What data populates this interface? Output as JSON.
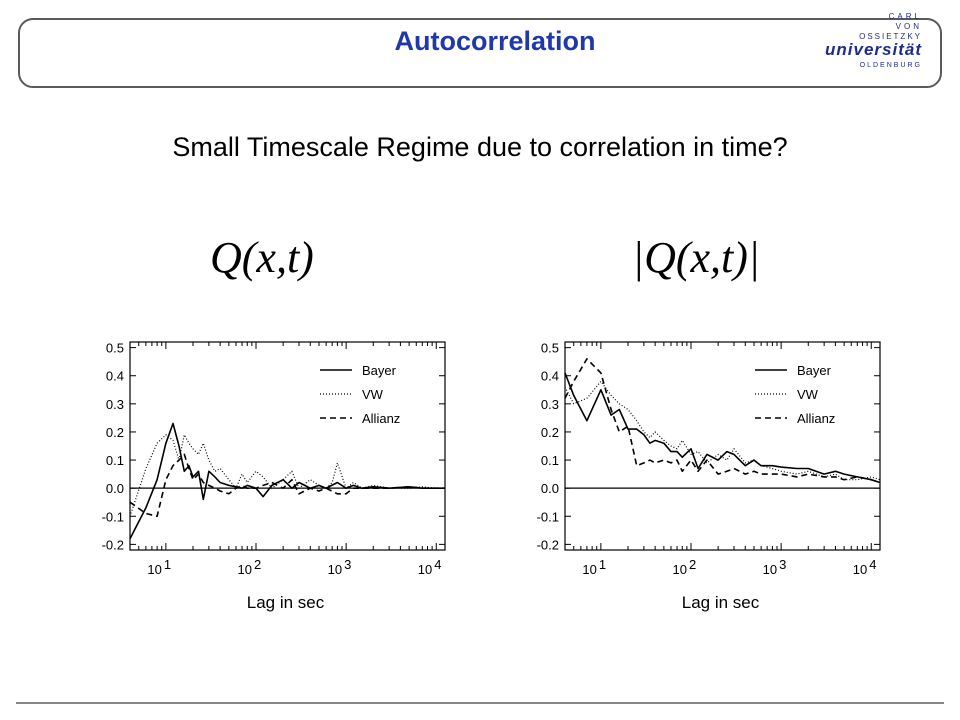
{
  "header": {
    "title": "Autocorrelation",
    "logo": {
      "line1": "CARL",
      "line2": "VON",
      "line3": "OSSIETZKY",
      "line4": "universität",
      "line5": "OLDENBURG"
    }
  },
  "subtitle": "Small Timescale Regime due to correlation in time?",
  "formulas": {
    "left": "Q(x,t)",
    "right": "|Q(x,t)|"
  },
  "chart_data": [
    {
      "type": "line",
      "xlabel": "Lag in sec",
      "xscale": "log",
      "xlim": [
        4,
        12500
      ],
      "ylim": [
        -0.22,
        0.52
      ],
      "yticks": [
        -0.2,
        -0.1,
        0.0,
        0.1,
        0.2,
        0.3,
        0.4,
        0.5
      ],
      "ytick_labels": [
        "-0.2",
        "-0.1",
        "0.0",
        "0.1",
        "0.2",
        "0.3",
        "0.4",
        "0.5"
      ],
      "xticks": [
        10,
        100,
        1000,
        10000
      ],
      "xtick_labels": [
        {
          "base": "10",
          "exp": "1"
        },
        {
          "base": "10",
          "exp": "2"
        },
        {
          "base": "10",
          "exp": "3"
        },
        {
          "base": "10",
          "exp": "4"
        }
      ],
      "grid": false,
      "legend": "top-right",
      "zero_line": true,
      "series": [
        {
          "name": "Bayer",
          "dash": "solid",
          "x": [
            4,
            6,
            8,
            10,
            12,
            14,
            16,
            18,
            20,
            23,
            26,
            30,
            35,
            40,
            50,
            60,
            70,
            80,
            100,
            120,
            150,
            200,
            250,
            300,
            400,
            500,
            600,
            800,
            1000,
            1200,
            1500,
            2000,
            3000,
            5000,
            7000,
            10000,
            12500
          ],
          "y": [
            -0.18,
            -0.07,
            0.03,
            0.16,
            0.23,
            0.15,
            0.06,
            0.08,
            0.04,
            0.06,
            -0.04,
            0.06,
            0.04,
            0.02,
            0.01,
            0.005,
            0.0,
            0.01,
            0.0,
            -0.03,
            0.01,
            0.03,
            0.0,
            0.02,
            0.0,
            0.01,
            0.0,
            0.02,
            0.0,
            0.01,
            0.0,
            0.005,
            0.0,
            0.005,
            0.0,
            0.0,
            0.0
          ]
        },
        {
          "name": "VW",
          "dash": "dotted",
          "x": [
            4,
            6,
            8,
            10,
            12,
            14,
            16,
            18,
            20,
            23,
            26,
            30,
            35,
            40,
            50,
            60,
            70,
            80,
            100,
            120,
            150,
            200,
            250,
            300,
            400,
            500,
            600,
            700,
            800,
            1000,
            1200,
            1500,
            2000,
            3000,
            5000,
            7000,
            10000,
            12500
          ],
          "y": [
            -0.1,
            0.07,
            0.16,
            0.19,
            0.17,
            0.1,
            0.19,
            0.16,
            0.14,
            0.12,
            0.16,
            0.1,
            0.06,
            0.07,
            0.03,
            0.0,
            0.05,
            0.02,
            0.06,
            0.04,
            0.0,
            0.03,
            0.06,
            0.0,
            0.03,
            0.01,
            0.0,
            0.02,
            0.09,
            0.0,
            0.02,
            0.0,
            0.01,
            0.0,
            0.0,
            0.005,
            0.0,
            0.0
          ]
        },
        {
          "name": "Allianz",
          "dash": "dashed",
          "x": [
            4,
            6,
            8,
            10,
            12,
            14,
            16,
            18,
            20,
            23,
            26,
            30,
            35,
            40,
            50,
            60,
            70,
            80,
            100,
            120,
            150,
            200,
            250,
            300,
            400,
            500,
            600,
            800,
            1000,
            1200,
            1500,
            2000,
            3000,
            5000,
            7000,
            10000,
            12500
          ],
          "y": [
            -0.05,
            -0.09,
            -0.1,
            0.03,
            0.08,
            0.1,
            0.12,
            0.07,
            0.03,
            0.05,
            0.02,
            0.01,
            0.0,
            -0.01,
            -0.02,
            0.0,
            0.01,
            0.0,
            0.0,
            0.01,
            0.02,
            0.0,
            0.03,
            -0.02,
            0.0,
            -0.01,
            0.0,
            -0.02,
            -0.02,
            0.0,
            0.0,
            0.0,
            0.0,
            0.005,
            0.0,
            0.0,
            0.0
          ]
        }
      ]
    },
    {
      "type": "line",
      "xlabel": "Lag in sec",
      "xscale": "log",
      "xlim": [
        4,
        12500
      ],
      "ylim": [
        -0.22,
        0.52
      ],
      "yticks": [
        -0.2,
        -0.1,
        0.0,
        0.1,
        0.2,
        0.3,
        0.4,
        0.5
      ],
      "ytick_labels": [
        "-0.2",
        "-0.1",
        "0.0",
        "0.1",
        "0.2",
        "0.3",
        "0.4",
        "0.5"
      ],
      "xticks": [
        10,
        100,
        1000,
        10000
      ],
      "xtick_labels": [
        {
          "base": "10",
          "exp": "1"
        },
        {
          "base": "10",
          "exp": "2"
        },
        {
          "base": "10",
          "exp": "3"
        },
        {
          "base": "10",
          "exp": "4"
        }
      ],
      "grid": false,
      "legend": "top-right",
      "zero_line": true,
      "series": [
        {
          "name": "Bayer",
          "dash": "solid",
          "x": [
            4,
            5,
            7,
            10,
            13,
            16,
            20,
            25,
            30,
            35,
            40,
            50,
            60,
            70,
            80,
            100,
            120,
            150,
            200,
            250,
            300,
            400,
            500,
            600,
            800,
            1000,
            1500,
            2000,
            3000,
            4000,
            5000,
            7000,
            10000,
            12500
          ],
          "y": [
            0.41,
            0.33,
            0.24,
            0.35,
            0.26,
            0.28,
            0.21,
            0.21,
            0.19,
            0.16,
            0.17,
            0.16,
            0.13,
            0.13,
            0.11,
            0.14,
            0.07,
            0.12,
            0.1,
            0.13,
            0.12,
            0.08,
            0.1,
            0.08,
            0.08,
            0.075,
            0.07,
            0.07,
            0.05,
            0.06,
            0.05,
            0.04,
            0.03,
            0.02
          ]
        },
        {
          "name": "VW",
          "dash": "dotted",
          "x": [
            4,
            5,
            7,
            10,
            13,
            16,
            20,
            25,
            30,
            35,
            40,
            50,
            60,
            70,
            80,
            100,
            120,
            150,
            200,
            250,
            300,
            400,
            500,
            600,
            800,
            1000,
            1500,
            2000,
            3000,
            4000,
            5000,
            7000,
            10000,
            12500
          ],
          "y": [
            0.36,
            0.3,
            0.32,
            0.38,
            0.33,
            0.3,
            0.28,
            0.24,
            0.2,
            0.18,
            0.2,
            0.17,
            0.15,
            0.14,
            0.17,
            0.12,
            0.13,
            0.09,
            0.12,
            0.1,
            0.14,
            0.09,
            0.1,
            0.08,
            0.07,
            0.06,
            0.05,
            0.06,
            0.04,
            0.05,
            0.03,
            0.03,
            0.04,
            0.03
          ]
        },
        {
          "name": "Allianz",
          "dash": "dashed",
          "x": [
            4,
            5,
            7,
            10,
            13,
            16,
            20,
            25,
            30,
            35,
            40,
            50,
            60,
            70,
            80,
            100,
            120,
            150,
            200,
            250,
            300,
            400,
            500,
            600,
            800,
            1000,
            1500,
            2000,
            3000,
            4000,
            5000,
            7000,
            10000,
            12500
          ],
          "y": [
            0.32,
            0.38,
            0.46,
            0.41,
            0.28,
            0.2,
            0.22,
            0.08,
            0.09,
            0.1,
            0.09,
            0.1,
            0.09,
            0.1,
            0.06,
            0.1,
            0.06,
            0.1,
            0.05,
            0.06,
            0.07,
            0.05,
            0.06,
            0.05,
            0.05,
            0.05,
            0.04,
            0.05,
            0.04,
            0.04,
            0.03,
            0.04,
            0.03,
            0.02
          ]
        }
      ]
    }
  ]
}
